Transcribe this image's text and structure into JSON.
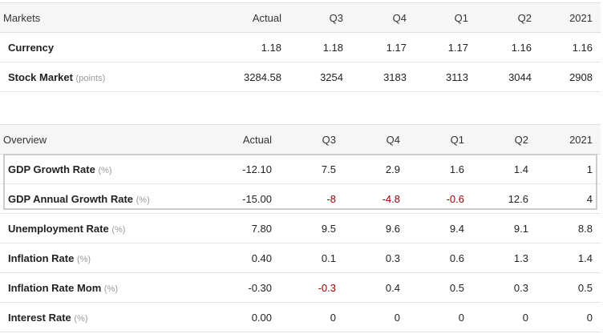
{
  "markets": {
    "headers": [
      "Markets",
      "Actual",
      "Q3",
      "Q4",
      "Q1",
      "Q2",
      "2021"
    ],
    "rows": [
      {
        "label": "Currency",
        "unit": "",
        "values": [
          "1.18",
          "1.18",
          "1.17",
          "1.17",
          "1.16",
          "1.16"
        ]
      },
      {
        "label": "Stock Market",
        "unit": "(points)",
        "values": [
          "3284.58",
          "3254",
          "3183",
          "3113",
          "3044",
          "2908"
        ]
      }
    ]
  },
  "overview": {
    "headers": [
      "Overview",
      "Actual",
      "Q3",
      "Q4",
      "Q1",
      "Q2",
      "2021"
    ],
    "rows": [
      {
        "label": "GDP Growth Rate",
        "unit": "(%)",
        "values": [
          "-12.10",
          "7.5",
          "2.9",
          "1.6",
          "1.4",
          "1"
        ],
        "highlight": true
      },
      {
        "label": "GDP Annual Growth Rate",
        "unit": "(%)",
        "values": [
          "-15.00",
          "-8",
          "-4.8",
          "-0.6",
          "12.6",
          "4"
        ],
        "highlight": true
      },
      {
        "label": "Unemployment Rate",
        "unit": "(%)",
        "values": [
          "7.80",
          "9.5",
          "9.6",
          "9.4",
          "9.1",
          "8.8"
        ]
      },
      {
        "label": "Inflation Rate",
        "unit": "(%)",
        "values": [
          "0.40",
          "0.1",
          "0.3",
          "0.6",
          "1.3",
          "1.4"
        ]
      },
      {
        "label": "Inflation Rate Mom",
        "unit": "(%)",
        "values": [
          "-0.30",
          "-0.3",
          "0.4",
          "0.5",
          "0.3",
          "0.5"
        ]
      },
      {
        "label": "Interest Rate",
        "unit": "(%)",
        "values": [
          "0.00",
          "0",
          "0",
          "0",
          "0",
          "0"
        ]
      }
    ]
  },
  "colors": {
    "negative_forecast": "#a00000",
    "header_bg": "#f6f6f6",
    "highlight_border": "#cccccc"
  }
}
